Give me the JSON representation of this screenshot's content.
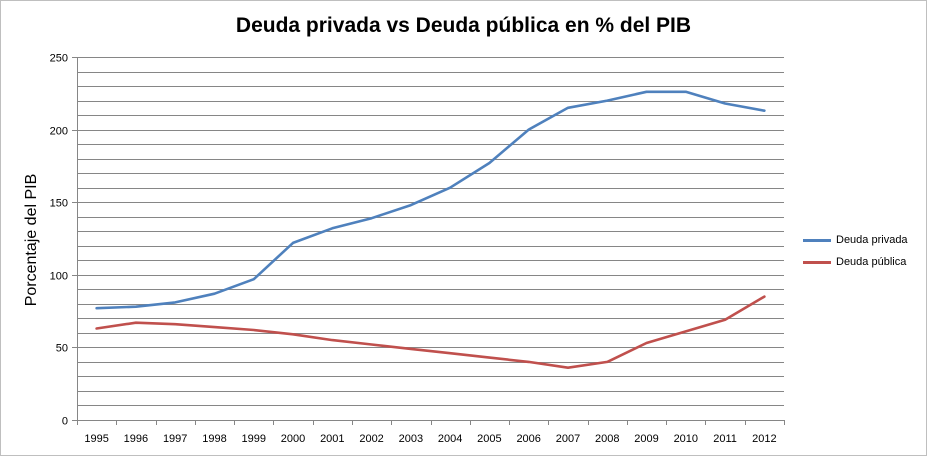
{
  "chart_data": {
    "type": "line",
    "title": "Deuda privada vs Deuda pública en % del PIB",
    "xlabel": "",
    "ylabel": "Porcentaje del PIB",
    "ylim": [
      0,
      250
    ],
    "yticks": [
      0,
      50,
      100,
      150,
      200,
      250
    ],
    "minor_grid_step": 10,
    "grid": true,
    "legend": "right",
    "categories": [
      "1995",
      "1996",
      "1997",
      "1998",
      "1999",
      "2000",
      "2001",
      "2002",
      "2003",
      "2004",
      "2005",
      "2006",
      "2007",
      "2008",
      "2009",
      "2010",
      "2011",
      "2012"
    ],
    "series": [
      {
        "name": "Deuda privada",
        "color": "#4f81bd",
        "values": [
          77,
          78,
          81,
          87,
          97,
          122,
          132,
          139,
          148,
          160,
          177,
          200,
          215,
          220,
          226,
          226,
          218,
          213
        ]
      },
      {
        "name": "Deuda pública",
        "color": "#c0504d",
        "values": [
          63,
          67,
          66,
          64,
          62,
          59,
          55,
          52,
          49,
          46,
          43,
          40,
          36,
          40,
          53,
          61,
          69,
          85
        ]
      }
    ]
  }
}
